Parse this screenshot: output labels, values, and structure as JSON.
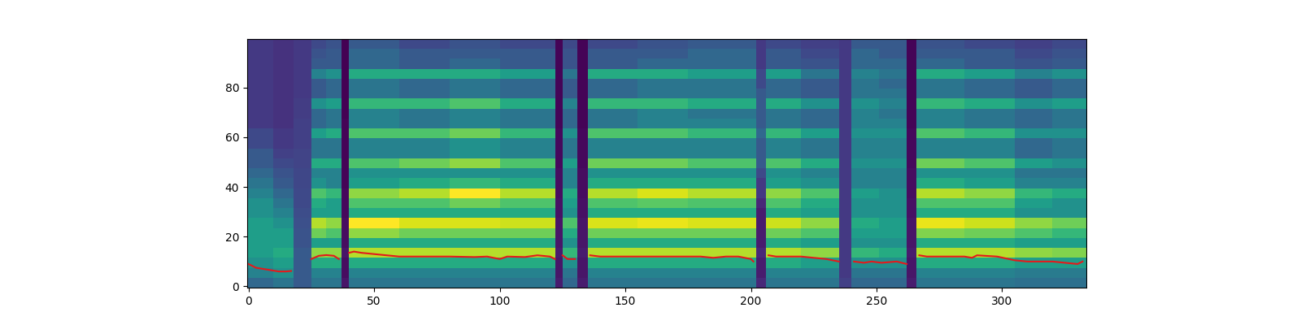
{
  "chart_data": {
    "type": "heatmap",
    "color": "viridis",
    "x_edges": [
      -0.5,
      10,
      18,
      25,
      31,
      37,
      40,
      60,
      80,
      100,
      122,
      125,
      131,
      135,
      155,
      175,
      202,
      206,
      220,
      235,
      240,
      251,
      262,
      266,
      285,
      305,
      320,
      333.5
    ],
    "y_edges": [
      -0.5,
      3.5,
      7.5,
      11.5,
      15.5,
      19.5,
      23.5,
      27.5,
      31.5,
      35.5,
      39.5,
      43.5,
      47.5,
      51.5,
      55.5,
      59.5,
      63.5,
      67.5,
      71.5,
      75.5,
      79.5,
      83.5,
      87.5,
      91.5,
      95.5,
      99.5
    ],
    "cells": [
      [
        0.35,
        0.45,
        0.5,
        0.55,
        0.55,
        0.55,
        0.55,
        0.5,
        0.5,
        0.45,
        0.4,
        0.35,
        0.3,
        0.3,
        0.25,
        0.25,
        0.2,
        0.2,
        0.2,
        0.2,
        0.2,
        0.2,
        0.2,
        0.2,
        0.2
      ],
      [
        0.4,
        0.5,
        0.55,
        0.6,
        0.55,
        0.55,
        0.5,
        0.45,
        0.4,
        0.35,
        0.3,
        0.28,
        0.25,
        0.22,
        0.2,
        0.2,
        0.18,
        0.18,
        0.18,
        0.18,
        0.18,
        0.18,
        0.18,
        0.18,
        0.18
      ],
      [
        0.3,
        0.3,
        0.3,
        0.3,
        0.28,
        0.28,
        0.27,
        0.26,
        0.25,
        0.25,
        0.24,
        0.24,
        0.23,
        0.23,
        0.22,
        0.22,
        0.22,
        0.21,
        0.21,
        0.2,
        0.2,
        0.2,
        0.2,
        0.2,
        0.2
      ],
      [
        0.4,
        0.45,
        0.6,
        0.8,
        0.55,
        0.75,
        0.85,
        0.55,
        0.6,
        0.7,
        0.5,
        0.45,
        0.6,
        0.4,
        0.4,
        0.55,
        0.35,
        0.35,
        0.5,
        0.3,
        0.3,
        0.45,
        0.3,
        0.28,
        0.25
      ],
      [
        0.4,
        0.45,
        0.6,
        0.8,
        0.55,
        0.7,
        0.8,
        0.55,
        0.55,
        0.65,
        0.45,
        0.45,
        0.6,
        0.4,
        0.4,
        0.6,
        0.4,
        0.4,
        0.55,
        0.35,
        0.35,
        0.5,
        0.3,
        0.3,
        0.28
      ],
      [
        0.1,
        0.08,
        0.08,
        0.1,
        0.08,
        0.08,
        0.08,
        0.07,
        0.07,
        0.07,
        0.06,
        0.06,
        0.06,
        0.06,
        0.06,
        0.06,
        0.06,
        0.05,
        0.05,
        0.05,
        0.05,
        0.05,
        0.05,
        0.05,
        0.05
      ],
      [
        0.4,
        0.45,
        0.6,
        0.85,
        0.6,
        0.8,
        0.95,
        0.6,
        0.7,
        0.8,
        0.55,
        0.5,
        0.7,
        0.45,
        0.45,
        0.7,
        0.45,
        0.45,
        0.65,
        0.4,
        0.4,
        0.6,
        0.35,
        0.35,
        0.3
      ],
      [
        0.4,
        0.45,
        0.6,
        0.85,
        0.6,
        0.75,
        0.9,
        0.6,
        0.7,
        0.85,
        0.6,
        0.5,
        0.75,
        0.45,
        0.45,
        0.7,
        0.4,
        0.4,
        0.65,
        0.35,
        0.35,
        0.6,
        0.3,
        0.3,
        0.25
      ],
      [
        0.4,
        0.45,
        0.6,
        0.85,
        0.6,
        0.75,
        0.9,
        0.6,
        0.75,
        0.95,
        0.65,
        0.5,
        0.8,
        0.5,
        0.5,
        0.75,
        0.45,
        0.45,
        0.7,
        0.4,
        0.4,
        0.6,
        0.35,
        0.3,
        0.28
      ],
      [
        0.4,
        0.45,
        0.6,
        0.85,
        0.6,
        0.75,
        0.88,
        0.6,
        0.7,
        0.85,
        0.6,
        0.5,
        0.7,
        0.45,
        0.45,
        0.65,
        0.4,
        0.4,
        0.6,
        0.35,
        0.35,
        0.55,
        0.3,
        0.3,
        0.25
      ],
      [
        0.12,
        0.1,
        0.1,
        0.12,
        0.1,
        0.1,
        0.1,
        0.09,
        0.09,
        0.08,
        0.08,
        0.08,
        0.07,
        0.07,
        0.07,
        0.07,
        0.06,
        0.06,
        0.06,
        0.06,
        0.06,
        0.06,
        0.06,
        0.06,
        0.06
      ],
      [
        0.35,
        0.4,
        0.5,
        0.65,
        0.5,
        0.6,
        0.7,
        0.5,
        0.55,
        0.6,
        0.45,
        0.45,
        0.55,
        0.4,
        0.4,
        0.5,
        0.35,
        0.35,
        0.45,
        0.3,
        0.3,
        0.4,
        0.28,
        0.28,
        0.25
      ],
      [
        0.12,
        0.1,
        0.1,
        0.12,
        0.1,
        0.1,
        0.1,
        0.09,
        0.09,
        0.08,
        0.08,
        0.08,
        0.07,
        0.07,
        0.07,
        0.07,
        0.06,
        0.06,
        0.06,
        0.06,
        0.06,
        0.06,
        0.06,
        0.06,
        0.06
      ],
      [
        0.4,
        0.45,
        0.6,
        0.85,
        0.6,
        0.75,
        0.9,
        0.6,
        0.7,
        0.85,
        0.6,
        0.5,
        0.75,
        0.45,
        0.45,
        0.7,
        0.4,
        0.4,
        0.65,
        0.35,
        0.35,
        0.6,
        0.3,
        0.3,
        0.25
      ],
      [
        0.4,
        0.45,
        0.6,
        0.85,
        0.6,
        0.75,
        0.92,
        0.6,
        0.72,
        0.9,
        0.6,
        0.5,
        0.75,
        0.45,
        0.45,
        0.7,
        0.45,
        0.45,
        0.65,
        0.4,
        0.4,
        0.6,
        0.35,
        0.3,
        0.28
      ],
      [
        0.4,
        0.45,
        0.6,
        0.85,
        0.6,
        0.75,
        0.9,
        0.6,
        0.7,
        0.85,
        0.6,
        0.5,
        0.7,
        0.45,
        0.45,
        0.65,
        0.45,
        0.4,
        0.6,
        0.4,
        0.4,
        0.55,
        0.35,
        0.35,
        0.3
      ],
      [
        0.15,
        0.12,
        0.12,
        0.15,
        0.12,
        0.12,
        0.12,
        0.12,
        0.15,
        0.2,
        0.2,
        0.25,
        0.3,
        0.3,
        0.3,
        0.35,
        0.3,
        0.3,
        0.3,
        0.3,
        0.25,
        0.25,
        0.2,
        0.2,
        0.2
      ],
      [
        0.4,
        0.45,
        0.6,
        0.85,
        0.6,
        0.75,
        0.88,
        0.6,
        0.7,
        0.8,
        0.55,
        0.5,
        0.7,
        0.45,
        0.45,
        0.65,
        0.4,
        0.4,
        0.6,
        0.35,
        0.35,
        0.55,
        0.3,
        0.3,
        0.25
      ],
      [
        0.4,
        0.45,
        0.55,
        0.8,
        0.55,
        0.7,
        0.8,
        0.55,
        0.6,
        0.7,
        0.5,
        0.45,
        0.6,
        0.4,
        0.4,
        0.55,
        0.35,
        0.35,
        0.5,
        0.3,
        0.3,
        0.4,
        0.28,
        0.25,
        0.22
      ],
      [
        0.22,
        0.2,
        0.2,
        0.2,
        0.2,
        0.2,
        0.2,
        0.2,
        0.2,
        0.2,
        0.2,
        0.2,
        0.2,
        0.2,
        0.2,
        0.2,
        0.2,
        0.2,
        0.2,
        0.2,
        0.2,
        0.2,
        0.2,
        0.2,
        0.2
      ],
      [
        0.35,
        0.4,
        0.5,
        0.65,
        0.5,
        0.55,
        0.6,
        0.5,
        0.5,
        0.55,
        0.45,
        0.45,
        0.5,
        0.45,
        0.45,
        0.5,
        0.45,
        0.45,
        0.5,
        0.4,
        0.4,
        0.45,
        0.35,
        0.35,
        0.3
      ],
      [
        0.35,
        0.4,
        0.5,
        0.6,
        0.5,
        0.55,
        0.55,
        0.5,
        0.5,
        0.5,
        0.45,
        0.45,
        0.5,
        0.45,
        0.45,
        0.5,
        0.45,
        0.4,
        0.45,
        0.4,
        0.35,
        0.4,
        0.35,
        0.3,
        0.3
      ],
      [
        0.12,
        0.1,
        0.1,
        0.12,
        0.1,
        0.1,
        0.1,
        0.09,
        0.09,
        0.08,
        0.08,
        0.08,
        0.07,
        0.07,
        0.07,
        0.07,
        0.06,
        0.06,
        0.06,
        0.06,
        0.06,
        0.06,
        0.06,
        0.06,
        0.06
      ],
      [
        0.4,
        0.45,
        0.6,
        0.85,
        0.6,
        0.78,
        0.92,
        0.6,
        0.7,
        0.85,
        0.6,
        0.5,
        0.75,
        0.45,
        0.45,
        0.7,
        0.45,
        0.45,
        0.65,
        0.4,
        0.4,
        0.6,
        0.35,
        0.3,
        0.28
      ],
      [
        0.4,
        0.45,
        0.6,
        0.85,
        0.6,
        0.75,
        0.88,
        0.6,
        0.7,
        0.8,
        0.55,
        0.5,
        0.7,
        0.45,
        0.45,
        0.65,
        0.4,
        0.4,
        0.6,
        0.35,
        0.35,
        0.55,
        0.3,
        0.3,
        0.25
      ],
      [
        0.38,
        0.42,
        0.55,
        0.8,
        0.55,
        0.7,
        0.8,
        0.5,
        0.55,
        0.65,
        0.45,
        0.4,
        0.55,
        0.35,
        0.35,
        0.5,
        0.35,
        0.35,
        0.5,
        0.3,
        0.3,
        0.45,
        0.28,
        0.25,
        0.22
      ],
      [
        0.38,
        0.42,
        0.55,
        0.78,
        0.55,
        0.65,
        0.75,
        0.5,
        0.5,
        0.6,
        0.45,
        0.4,
        0.5,
        0.4,
        0.4,
        0.5,
        0.4,
        0.4,
        0.55,
        0.35,
        0.35,
        0.5,
        0.3,
        0.28,
        0.25
      ]
    ],
    "series": [
      {
        "type": "line",
        "color": "#e41a1c",
        "x": [
          0,
          3,
          6,
          9,
          12,
          15,
          17,
          20,
          25,
          28,
          31,
          34,
          36,
          38,
          40,
          42,
          45,
          50,
          55,
          60,
          70,
          80,
          90,
          95,
          100,
          103,
          110,
          115,
          120,
          122,
          124,
          125,
          127,
          130,
          133,
          136,
          140,
          150,
          160,
          170,
          180,
          185,
          190,
          195,
          200,
          201,
          204,
          207,
          210,
          220,
          225,
          230,
          235,
          238,
          241,
          245,
          248,
          252,
          258,
          262,
          264,
          267,
          270,
          280,
          285,
          288,
          290,
          298,
          305,
          310,
          315,
          320,
          325,
          330,
          332
        ],
        "values": [
          9,
          7.5,
          7,
          6.5,
          6,
          6,
          6.2,
          null,
          11,
          12.3,
          12.6,
          12.3,
          11,
          null,
          13.5,
          14,
          13.5,
          13,
          12.5,
          12,
          12,
          12,
          11.8,
          12,
          11,
          12,
          11.8,
          12.5,
          12,
          11,
          null,
          12.5,
          11,
          11,
          null,
          12.5,
          12,
          12,
          12,
          12,
          12,
          11.5,
          12,
          12,
          11,
          10,
          null,
          12.5,
          12,
          12,
          11.5,
          11,
          10,
          null,
          10,
          9.5,
          10,
          9.5,
          10,
          9,
          null,
          12.5,
          12,
          12,
          12,
          11.5,
          12.5,
          12,
          10.5,
          10,
          10,
          10,
          9.5,
          9,
          10
        ]
      }
    ],
    "xlim": [
      -0.5,
      333.5
    ],
    "ylim": [
      -0.5,
      99.5
    ],
    "xticks": [
      0,
      50,
      100,
      150,
      200,
      250,
      300
    ],
    "yticks": [
      0,
      20,
      40,
      60,
      80
    ]
  }
}
